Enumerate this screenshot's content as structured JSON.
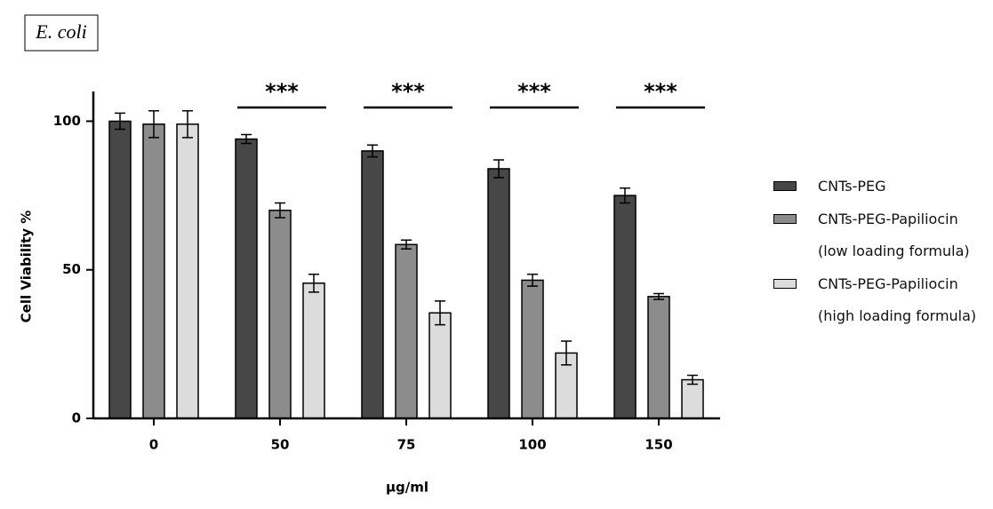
{
  "chart_data": {
    "type": "bar",
    "title": "E. coli",
    "y_label": "Cell Viability %",
    "x_label": "µg/ml",
    "categories": [
      "0",
      "50",
      "75",
      "100",
      "150"
    ],
    "series": [
      {
        "name": "CNTs-PEG",
        "color": "#474747",
        "values": [
          100,
          94,
          90,
          84,
          75
        ],
        "errors": [
          2.7,
          1.5,
          2,
          3,
          2.5
        ]
      },
      {
        "name": "CNTs-PEG-Papiliocin\n(low loading formula)",
        "color": "#8c8c8c",
        "values": [
          99,
          70,
          58.5,
          46.5,
          41
        ],
        "errors": [
          4.5,
          2.5,
          1.5,
          2,
          1
        ]
      },
      {
        "name": "CNTs-PEG-Papiliocin\n(high loading formula)",
        "color": "#dcdcdc",
        "values": [
          99,
          45.5,
          35.5,
          22,
          13
        ],
        "errors": [
          4.5,
          3,
          4,
          4,
          1.5
        ]
      }
    ],
    "annotations": [
      {
        "text": "***",
        "category": "50"
      },
      {
        "text": "***",
        "category": "75"
      },
      {
        "text": "***",
        "category": "100"
      },
      {
        "text": "***",
        "category": "150"
      }
    ],
    "ylim": [
      0,
      110
    ],
    "yticks": [
      0,
      50,
      100
    ],
    "grid": false,
    "legend": "right"
  }
}
